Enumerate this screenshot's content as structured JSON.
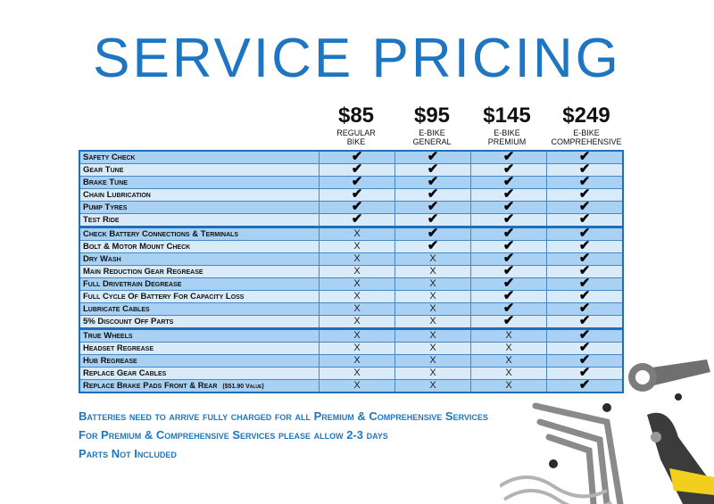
{
  "title": "SERVICE PRICING",
  "plans": [
    {
      "price": "$85",
      "name": "REGULAR\nBIKE"
    },
    {
      "price": "$95",
      "name": "E-BIKE\nGENERAL"
    },
    {
      "price": "$145",
      "name": "E-BIKE\nPREMIUM"
    },
    {
      "price": "$249",
      "name": "E-BIKE\nCOMPREHENSIVE"
    }
  ],
  "services": [
    {
      "label": "Safety Check",
      "marks": [
        1,
        1,
        1,
        1
      ]
    },
    {
      "label": "Gear Tune",
      "marks": [
        1,
        1,
        1,
        1
      ]
    },
    {
      "label": "Brake Tune",
      "marks": [
        1,
        1,
        1,
        1
      ]
    },
    {
      "label": "Chain Lubrication",
      "marks": [
        1,
        1,
        1,
        1
      ]
    },
    {
      "label": "Pump Tyres",
      "marks": [
        1,
        1,
        1,
        1
      ]
    },
    {
      "label": "Test Ride",
      "marks": [
        1,
        1,
        1,
        1
      ]
    },
    {
      "label": "Check Battery Connections & Terminals",
      "marks": [
        0,
        1,
        1,
        1
      ]
    },
    {
      "label": "Bolt & Motor Mount Check",
      "marks": [
        0,
        1,
        1,
        1
      ]
    },
    {
      "label": "Dry Wash",
      "marks": [
        0,
        0,
        1,
        1
      ]
    },
    {
      "label": "Main Reduction Gear Regrease",
      "marks": [
        0,
        0,
        1,
        1
      ]
    },
    {
      "label": "Full Drivetrain Degrease",
      "marks": [
        0,
        0,
        1,
        1
      ]
    },
    {
      "label": "Full Cycle Of Battery For Capacity Loss",
      "marks": [
        0,
        0,
        1,
        1
      ]
    },
    {
      "label": "Lubricate Cables",
      "marks": [
        0,
        0,
        1,
        1
      ]
    },
    {
      "label": "5% Discount Off Parts",
      "marks": [
        0,
        0,
        1,
        1
      ]
    },
    {
      "label": "True Wheels",
      "marks": [
        0,
        0,
        0,
        1
      ]
    },
    {
      "label": "Headset Regrease",
      "marks": [
        0,
        0,
        0,
        1
      ]
    },
    {
      "label": "Hub Regrease",
      "marks": [
        0,
        0,
        0,
        1
      ]
    },
    {
      "label": "Replace Gear Cables",
      "marks": [
        0,
        0,
        0,
        1
      ]
    },
    {
      "label": "Replace Brake Pads Front & Rear",
      "note": "($51.90 Value)",
      "marks": [
        0,
        0,
        0,
        1
      ]
    }
  ],
  "symbols": {
    "check": "✔",
    "cross": "X"
  },
  "notes": [
    "Batteries need to arrive fully charged for all Premium & Comprehensive Services",
    "For Premium & Comprehensive Services please allow 2-3 days",
    "Parts Not Included"
  ],
  "colors": {
    "accent": "#1e76c2",
    "row_light": "#d9ebf9",
    "row_dark": "#a9d1f3"
  },
  "decoration": {
    "icons": [
      "wrench-icon",
      "allen-key-icon",
      "cable-cutter-icon",
      "bike-chain-icon",
      "bolt-icon"
    ]
  }
}
